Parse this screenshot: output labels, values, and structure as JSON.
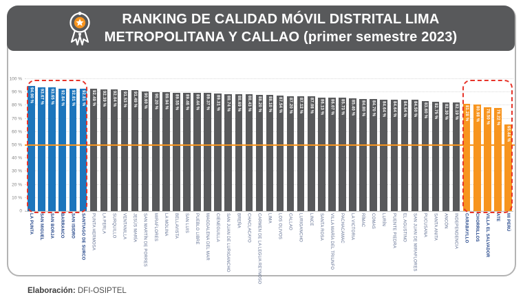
{
  "header": {
    "title_line1": "RANKING DE CALIDAD MÓVIL DISTRITAL LIMA",
    "title_line2": "METROPOLITANA Y CALLAO (primer semestre 2023)",
    "icon": "medal-icon"
  },
  "footer": {
    "label": "Elaboración:",
    "value": "DFI-OSIPTEL"
  },
  "colors": {
    "header_bg": "#58595B",
    "bar_top_group": "#1C75BC",
    "bar_mid_group": "#58595B",
    "bar_bottom_group": "#F7941E",
    "threshold_line": "#F7941D",
    "group_outline": "#E63329",
    "x_label_highlight": "#1F4287",
    "x_label_normal": "#5D6C8F",
    "y_label": "#7F7F7F",
    "value_label": "#FFFFFF"
  },
  "chart_data": {
    "type": "bar",
    "title": "RANKING DE CALIDAD MÓVIL DISTRITAL LIMA METROPOLITANA Y CALLAO (primer semestre 2023)",
    "xlabel": "",
    "ylabel": "",
    "ylim": [
      0,
      100
    ],
    "grid": true,
    "value_suffix": " %",
    "threshold_value": 50,
    "yticks": [
      {
        "label": "100 %",
        "value": 100
      },
      {
        "label": "90 %",
        "value": 90
      },
      {
        "label": "80 %",
        "value": 80
      },
      {
        "label": "70 %",
        "value": 70
      },
      {
        "label": "60 %",
        "value": 60
      },
      {
        "label": "50 %",
        "value": 50
      },
      {
        "label": "40 %",
        "value": 40
      },
      {
        "label": "30 %",
        "value": 30
      },
      {
        "label": "20 %",
        "value": 20
      },
      {
        "label": "10 %",
        "value": 10
      },
      {
        "label": "0",
        "value": 0
      }
    ],
    "bars": [
      {
        "district": "LA PUNTA",
        "value": 94.9,
        "group": "top"
      },
      {
        "district": "SAN MIGUEL",
        "value": 93.67,
        "group": "top"
      },
      {
        "district": "SAN BORJA",
        "value": 93.65,
        "group": "top"
      },
      {
        "district": "BARRANCO",
        "value": 92.84,
        "group": "top"
      },
      {
        "district": "SAN ISIDRO",
        "value": 92.81,
        "group": "top"
      },
      {
        "district": "SANTIAGO DE SURCO",
        "value": 92.81,
        "group": "top"
      },
      {
        "district": "PUNTA HERMOSA",
        "value": 92.49,
        "group": "mid"
      },
      {
        "district": "LA PERLA",
        "value": 92.39,
        "group": "mid"
      },
      {
        "district": "SURQUILLO",
        "value": 92.04,
        "group": "mid"
      },
      {
        "district": "VENTANILLA",
        "value": 91.53,
        "group": "mid"
      },
      {
        "district": "JESÚS MARÍA",
        "value": 91.49,
        "group": "mid"
      },
      {
        "district": "SAN MARTÍN DE PORRES",
        "value": 90.6,
        "group": "mid"
      },
      {
        "district": "MIRAFLORES",
        "value": 90.2,
        "group": "mid"
      },
      {
        "district": "LA MOLINA",
        "value": 89.94,
        "group": "mid"
      },
      {
        "district": "BELLAVISTA",
        "value": 89.55,
        "group": "mid"
      },
      {
        "district": "SAN LUIS",
        "value": 89.46,
        "group": "mid"
      },
      {
        "district": "PUEBLO LIBRE",
        "value": 89.44,
        "group": "mid"
      },
      {
        "district": "MAGDALENA DEL MAR",
        "value": 89.37,
        "group": "mid"
      },
      {
        "district": "CIENEGUILLA",
        "value": 89.31,
        "group": "mid"
      },
      {
        "district": "SAN JUAN DE LURIGANCHO",
        "value": 88.74,
        "group": "mid"
      },
      {
        "district": "BREÑA",
        "value": 88.69,
        "group": "mid"
      },
      {
        "district": "CHACLACAYO",
        "value": 88.43,
        "group": "mid"
      },
      {
        "district": "CARMEN DE LA LEGUA REYNOSO",
        "value": 88.2,
        "group": "mid"
      },
      {
        "district": "LIMA",
        "value": 88.1,
        "group": "mid"
      },
      {
        "district": "LOS OLIVOS",
        "value": 87.54,
        "group": "mid"
      },
      {
        "district": "CALLAO",
        "value": 87.2,
        "group": "mid"
      },
      {
        "district": "LURIGANCHO",
        "value": 87.12,
        "group": "mid"
      },
      {
        "district": "LINCE",
        "value": 87.08,
        "group": "mid"
      },
      {
        "district": "SANTA ROSA",
        "value": 86.13,
        "group": "mid"
      },
      {
        "district": "VILLA MARÍA DEL TRIUNFO",
        "value": 86.07,
        "group": "mid"
      },
      {
        "district": "PACHACAMAC",
        "value": 85.73,
        "group": "mid"
      },
      {
        "district": "LA VICTORIA",
        "value": 85.4,
        "group": "mid"
      },
      {
        "district": "RÍMAC",
        "value": 84.8,
        "group": "mid"
      },
      {
        "district": "COMAS",
        "value": 84.7,
        "group": "mid"
      },
      {
        "district": "LURÍN",
        "value": 84.64,
        "group": "mid"
      },
      {
        "district": "PUENTE PIEDRA",
        "value": 84.64,
        "group": "mid"
      },
      {
        "district": "EL AGUSTINO",
        "value": 84.54,
        "group": "mid"
      },
      {
        "district": "SAN JUAN DE MIRAFLORES",
        "value": 84.5,
        "group": "mid"
      },
      {
        "district": "PUCUSANA",
        "value": 83.6,
        "group": "mid"
      },
      {
        "district": "SANTA ANITA",
        "value": 82.75,
        "group": "mid"
      },
      {
        "district": "ANCÓN",
        "value": 82.3,
        "group": "mid"
      },
      {
        "district": "INDEPENDENCIA",
        "value": 82.19,
        "group": "mid"
      },
      {
        "district": "CARABAYLLO",
        "value": 81.28,
        "group": "bottom"
      },
      {
        "district": "CHORRILLOS",
        "value": 80.98,
        "group": "bottom"
      },
      {
        "district": "VILLA EL SALVADOR",
        "value": 78.5,
        "group": "bottom"
      },
      {
        "district": "ATE",
        "value": 78.22,
        "group": "bottom"
      },
      {
        "district": "MI PERÚ",
        "value": 65.44,
        "group": "bottom"
      }
    ]
  }
}
